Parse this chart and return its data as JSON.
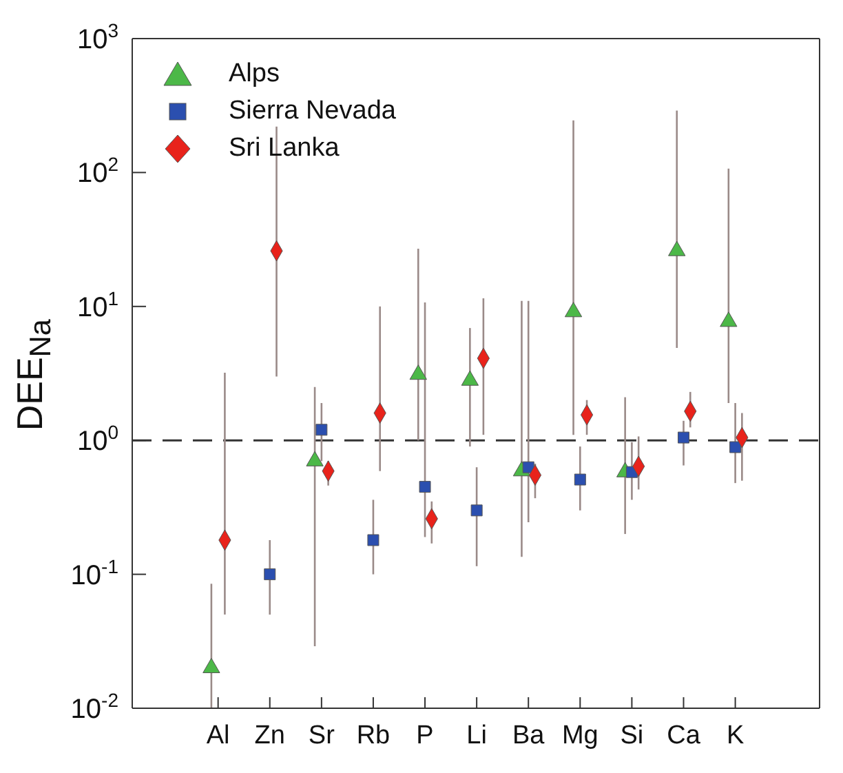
{
  "chart_data": {
    "type": "scatter",
    "ylabel": "DEE$_{Na}$",
    "categories": [
      "Al",
      "Zn",
      "Sr",
      "Rb",
      "P",
      "Li",
      "Ba",
      "Mg",
      "Si",
      "Ca",
      "K"
    ],
    "log": "y",
    "ylim": [
      0.01,
      1000
    ],
    "yticks": [
      {
        "value": 0.01,
        "label": "10$^{-2}$"
      },
      {
        "value": 0.1,
        "label": "10$^{-1}$"
      },
      {
        "value": 1,
        "label": "10$^{0}$"
      },
      {
        "value": 10,
        "label": "10$^{1}$"
      },
      {
        "value": 100,
        "label": "10$^{2}$"
      },
      {
        "value": 1000,
        "label": "10$^{3}$"
      }
    ],
    "series": [
      {
        "name": "Alps",
        "color": "#4cb848",
        "marker": "triangle",
        "values": [
          0.02,
          null,
          0.7,
          null,
          3.1,
          2.8,
          0.59,
          9.1,
          0.58,
          26,
          7.7
        ],
        "errors": [
          [
            0.01,
            0.085
          ],
          null,
          [
            0.029,
            2.5
          ],
          null,
          [
            1.0,
            27
          ],
          [
            0.9,
            6.9
          ],
          [
            0.135,
            11
          ],
          [
            1.1,
            245
          ],
          [
            0.2,
            2.1
          ],
          [
            4.9,
            290
          ],
          [
            1.9,
            107
          ]
        ]
      },
      {
        "name": "Sierra Nevada",
        "color": "#2b4faf",
        "marker": "square",
        "values": [
          null,
          0.1,
          1.2,
          0.18,
          0.45,
          0.3,
          0.63,
          0.51,
          0.58,
          1.05,
          0.89
        ],
        "errors": [
          null,
          [
            0.05,
            0.18
          ],
          [
            0.7,
            1.9
          ],
          [
            0.1,
            0.36
          ],
          [
            0.19,
            10.7
          ],
          [
            0.115,
            0.63
          ],
          [
            0.245,
            11
          ],
          [
            0.3,
            0.9
          ],
          [
            0.36,
            0.97
          ],
          [
            0.65,
            1.4
          ],
          [
            0.48,
            1.9
          ]
        ]
      },
      {
        "name": "Sri Lanka",
        "color": "#e8231b",
        "marker": "diamond",
        "values": [
          0.18,
          26,
          0.59,
          1.6,
          0.26,
          4.1,
          0.55,
          1.55,
          0.64,
          1.65,
          1.05
        ],
        "errors": [
          [
            0.05,
            3.2
          ],
          [
            3,
            220
          ],
          [
            0.46,
            0.7
          ],
          [
            0.59,
            10
          ],
          [
            0.17,
            0.35
          ],
          [
            1.1,
            11.5
          ],
          [
            0.37,
            0.67
          ],
          [
            1.1,
            2.0
          ],
          [
            0.43,
            1.07
          ],
          [
            1.25,
            2.3
          ],
          [
            0.5,
            1.6
          ]
        ]
      }
    ],
    "ref_lines": [
      {
        "axis": "y",
        "value": 1,
        "color": "#333333",
        "line_style": "dashed"
      }
    ],
    "legend": "top left"
  }
}
